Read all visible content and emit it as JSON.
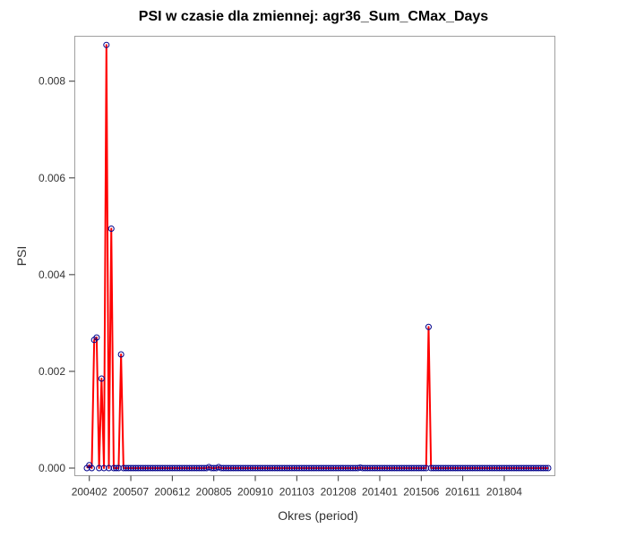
{
  "chart_data": {
    "type": "line",
    "title": "PSI w czasie dla zmiennej: agr36_Sum_CMax_Days",
    "xlabel": "Okres (period)",
    "ylabel": "PSI",
    "ylim": [
      0,
      0.0088
    ],
    "yticks": [
      "0.000",
      "0.002",
      "0.004",
      "0.006",
      "0.008"
    ],
    "x_tick_labels": [
      "200402",
      "200507",
      "200612",
      "200805",
      "200910",
      "201103",
      "201208",
      "201401",
      "201506",
      "201611",
      "201804"
    ],
    "grid": false,
    "legend": "none",
    "line_color": "#ff0000",
    "marker_color": "#00008b",
    "series": [
      {
        "x_start": "200401",
        "x_end": "201806",
        "frequency": "monthly",
        "values": [
          0,
          6e-05,
          0,
          0.00265,
          0.0027,
          0,
          0.00185,
          0,
          0.00875,
          0,
          0.00495,
          0,
          0,
          0,
          0.00235,
          0,
          0,
          0,
          0,
          0,
          0,
          0,
          0,
          0,
          0,
          0,
          0,
          0,
          0,
          0,
          0,
          0,
          0,
          0,
          0,
          0,
          0,
          0,
          0,
          0,
          0,
          0,
          0,
          0,
          0,
          0,
          0,
          0,
          0,
          0,
          2e-05,
          0,
          0,
          0,
          2e-05,
          0,
          0,
          0,
          0,
          0,
          0,
          0,
          0,
          0,
          0,
          0,
          0,
          0,
          0,
          0,
          0,
          0,
          0,
          0,
          0,
          0,
          0,
          0,
          0,
          0,
          0,
          0,
          0,
          0,
          0,
          0,
          0,
          0,
          0,
          0,
          0,
          0,
          0,
          0,
          0,
          0,
          0,
          0,
          0,
          0,
          0,
          0,
          0,
          0,
          0,
          0,
          0,
          0,
          0,
          0,
          0,
          0,
          1e-05,
          0,
          0,
          0,
          0,
          0,
          0,
          0,
          0,
          0,
          0,
          0,
          0,
          0,
          0,
          0,
          0,
          0,
          0,
          0,
          0,
          0,
          0,
          0,
          0,
          0,
          0,
          0,
          0.00292,
          0,
          0,
          0,
          0,
          0,
          0,
          0,
          0,
          0,
          0,
          0,
          0,
          0,
          0,
          0,
          0,
          0,
          0,
          0,
          0,
          0,
          0,
          0,
          0,
          0,
          0,
          0,
          0,
          0,
          0,
          0,
          0,
          0,
          0,
          0,
          0,
          0,
          0,
          0,
          0,
          0,
          0,
          0,
          0,
          0,
          0,
          0,
          0,
          0
        ]
      }
    ]
  }
}
